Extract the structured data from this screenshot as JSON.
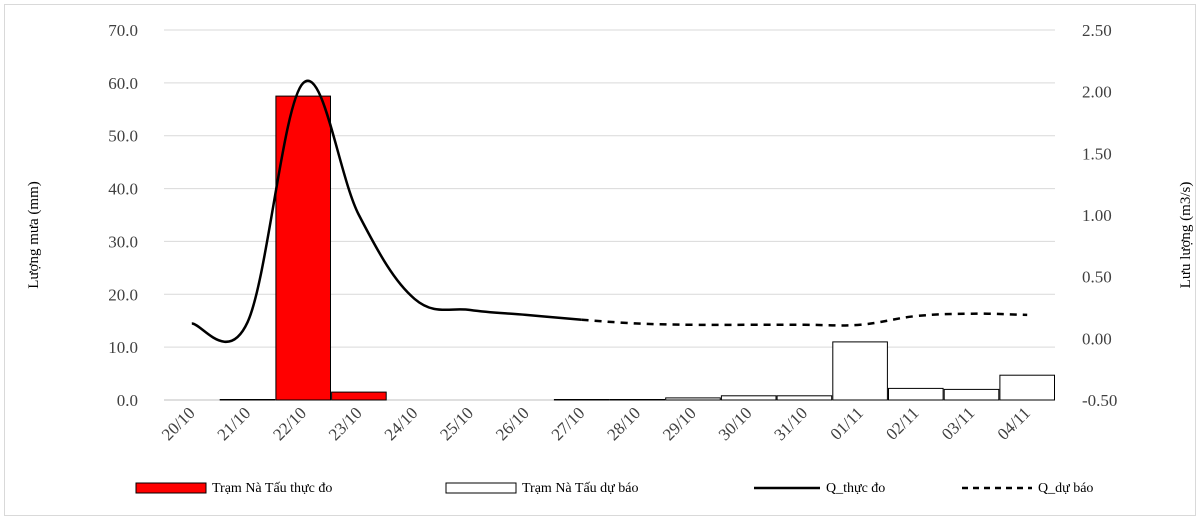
{
  "chart_data": {
    "type": "bar",
    "categories": [
      "20/10",
      "21/10",
      "22/10",
      "23/10",
      "24/10",
      "25/10",
      "26/10",
      "27/10",
      "28/10",
      "29/10",
      "30/10",
      "31/10",
      "01/11",
      "02/11",
      "03/11",
      "04/11"
    ],
    "series": [
      {
        "name": "Trạm Nà Tấu thực đo",
        "kind": "bar",
        "axis": "left",
        "color": "#ff0000",
        "values": [
          0,
          0.1,
          57.5,
          1.5,
          0,
          0,
          0,
          null,
          null,
          null,
          null,
          null,
          null,
          null,
          null,
          null
        ]
      },
      {
        "name": "Trạm Nà Tấu dự báo",
        "kind": "bar",
        "axis": "left",
        "color": "#ffffff",
        "values": [
          null,
          null,
          null,
          null,
          null,
          null,
          null,
          0.1,
          0.1,
          0.4,
          0.8,
          0.8,
          11.0,
          2.2,
          2.0,
          4.7
        ]
      },
      {
        "name": "Q_thực đo",
        "kind": "line",
        "axis": "right",
        "style": "solid",
        "values": [
          0.12,
          0.13,
          2.07,
          1.0,
          0.32,
          0.23,
          0.19,
          0.15,
          null,
          null,
          null,
          null,
          null,
          null,
          null,
          null
        ]
      },
      {
        "name": "Q_dự báo",
        "kind": "line",
        "axis": "right",
        "style": "dashed",
        "values": [
          null,
          null,
          null,
          null,
          null,
          null,
          null,
          0.15,
          0.12,
          0.11,
          0.11,
          0.11,
          0.11,
          0.18,
          0.2,
          0.19
        ]
      }
    ],
    "ylabel": "Lượng mưa (mm)",
    "y2label": "Lưu lượng (m3/s)",
    "ylim": [
      0,
      70
    ],
    "y2lim": [
      -0.5,
      2.5
    ],
    "yticks": [
      "0.0",
      "10.0",
      "20.0",
      "30.0",
      "40.0",
      "50.0",
      "60.0",
      "70.0"
    ],
    "y2ticks": [
      "-0.50",
      "0.00",
      "0.50",
      "1.00",
      "1.50",
      "2.00",
      "2.50"
    ],
    "grid": true,
    "legend_position": "bottom"
  }
}
